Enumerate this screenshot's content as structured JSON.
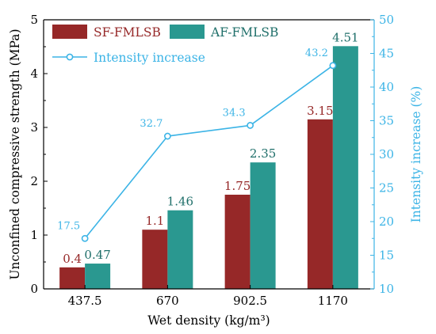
{
  "chart_data": {
    "type": "bar",
    "xlabel": "Wet density (kg/m³)",
    "ylabel": "Unconfined compressive strength (MPa)",
    "y2label": "Intensity increase (%)",
    "categories": [
      "437.5",
      "670",
      "902.5",
      "1170"
    ],
    "ylim": [
      0,
      5
    ],
    "y2lim": [
      10,
      50
    ],
    "yticks": [
      0,
      1,
      2,
      3,
      4,
      5
    ],
    "y2ticks": [
      10,
      15,
      20,
      25,
      30,
      35,
      40,
      45,
      50
    ],
    "series": [
      {
        "name": "SF-FMLSB",
        "type": "bar",
        "axis": "left",
        "values": [
          0.4,
          1.1,
          1.75,
          3.15
        ],
        "labels": [
          "0.4",
          "1.1",
          "1.75",
          "3.15"
        ]
      },
      {
        "name": "AF-FMLSB",
        "type": "bar",
        "axis": "left",
        "values": [
          0.47,
          1.46,
          2.35,
          4.51
        ],
        "labels": [
          "0.47",
          "1.46",
          "2.35",
          "4.51"
        ]
      },
      {
        "name": "Intensity increase",
        "type": "line",
        "axis": "right",
        "values": [
          17.5,
          32.7,
          34.3,
          43.2
        ],
        "labels": [
          "17.5",
          "32.7",
          "34.3",
          "43.2"
        ]
      }
    ],
    "legend_position": "top-left",
    "colors": {
      "sf": "#962828",
      "af": "#2a9890",
      "line": "#3cb4e6",
      "axis": "#000000"
    }
  }
}
